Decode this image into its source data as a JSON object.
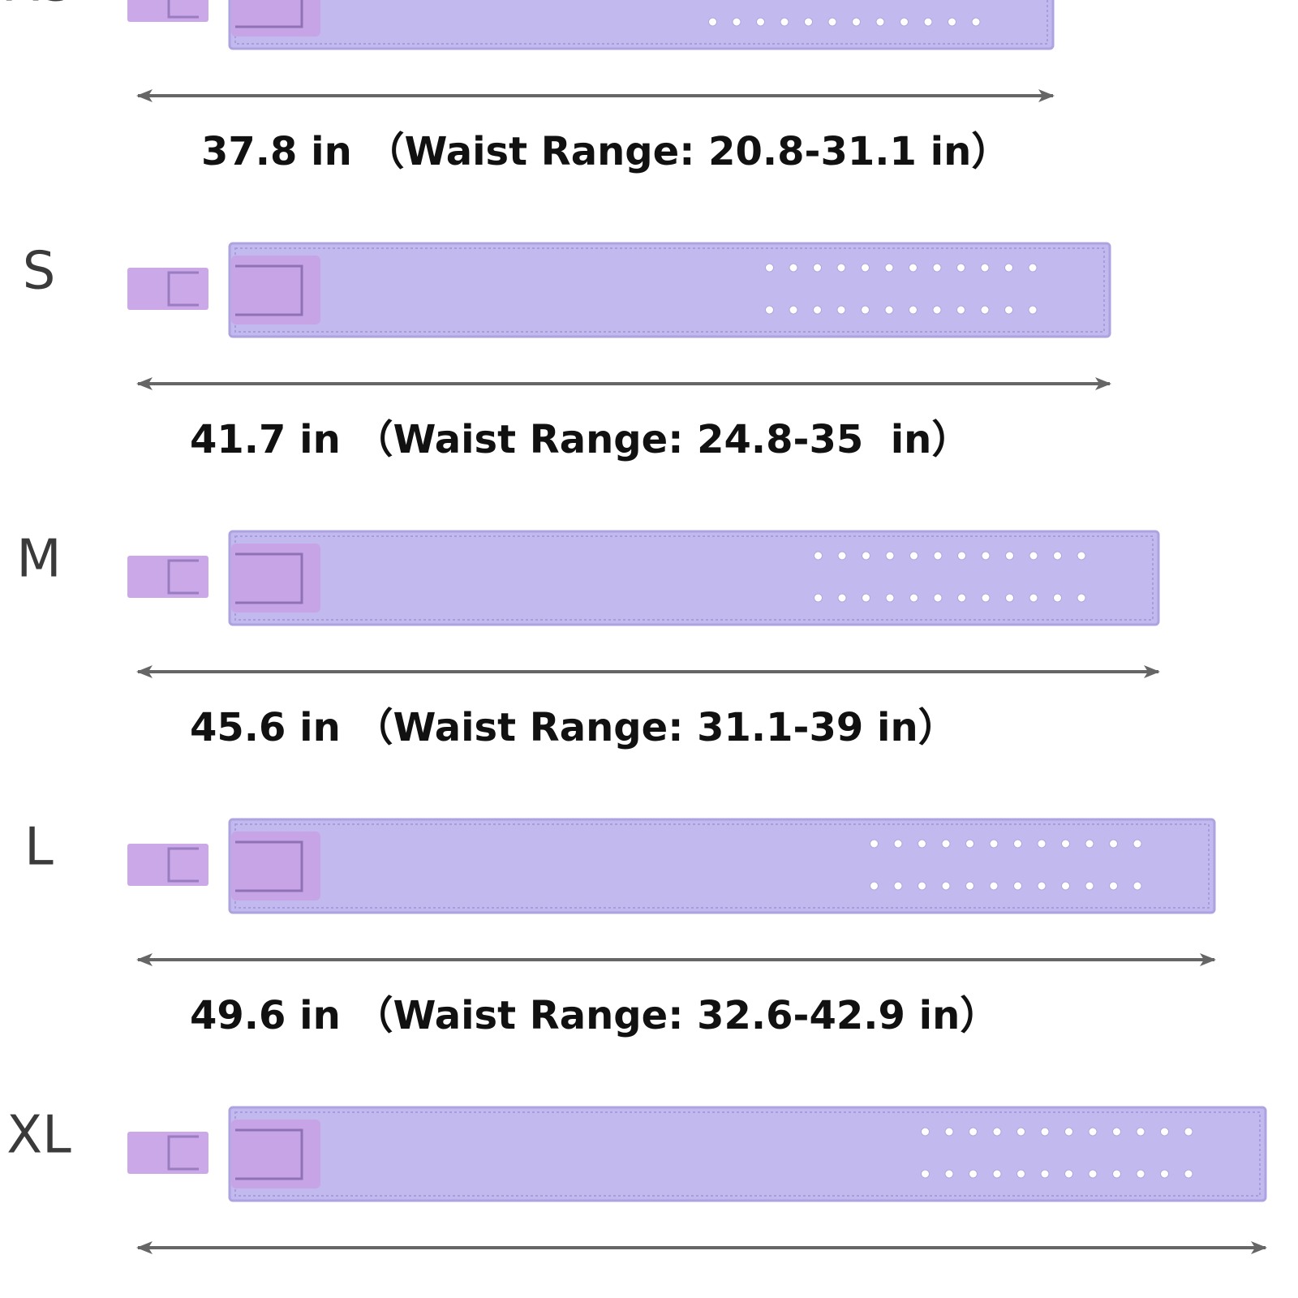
{
  "sizes": [
    {
      "label": "XS",
      "measurement": "37.8 in （Waist Range: 20.8-31.1 in）"
    },
    {
      "label": "S",
      "measurement": "41.7 in （Waist Range: 24.8-35  in）"
    },
    {
      "label": "M",
      "measurement": "45.6 in （Waist Range: 31.1-39 in）"
    },
    {
      "label": "L",
      "measurement": "49.6 in （Waist Range: 32.6-42.9 in）"
    },
    {
      "label": "XL"
    }
  ]
}
